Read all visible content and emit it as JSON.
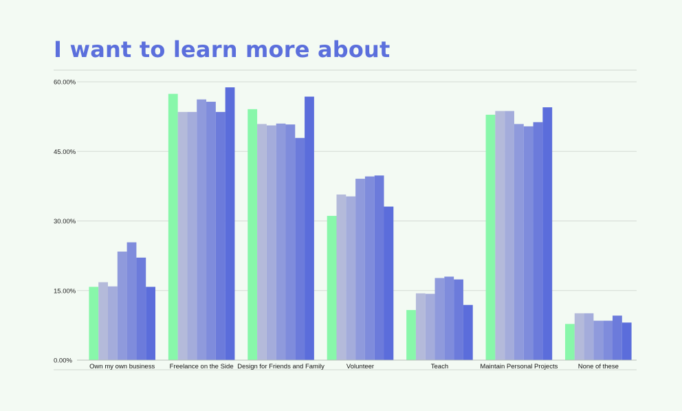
{
  "title": "I want to learn more about",
  "chart_data": {
    "type": "bar",
    "title": "I want to learn more about",
    "xlabel": "",
    "ylabel": "",
    "ylim": [
      0,
      60
    ],
    "yticks": [
      "0.00%",
      "15.00%",
      "30.00%",
      "45.00%",
      "60.00%"
    ],
    "grid": true,
    "legend": "none",
    "categories": [
      "Own my own business",
      "Freelance on the Side",
      "Design for Friends and Family",
      "Volunteer",
      "Teach",
      "Maintain Personal Projects",
      "None of these"
    ],
    "colors": [
      "#88f7aa",
      "#b4bada",
      "#a4acdb",
      "#8f9adc",
      "#7f8cdc",
      "#6c7bdb",
      "#5b6ddb"
    ],
    "series": [
      {
        "values": [
          15.8,
          57.4,
          54.1,
          31.1,
          10.8,
          52.9,
          7.8
        ]
      },
      {
        "values": [
          16.8,
          53.5,
          50.9,
          35.7,
          14.4,
          53.7,
          10.1
        ]
      },
      {
        "values": [
          15.9,
          53.5,
          50.6,
          35.3,
          14.3,
          53.7,
          10.1
        ]
      },
      {
        "values": [
          23.4,
          56.2,
          51.0,
          39.1,
          17.7,
          50.9,
          8.5
        ]
      },
      {
        "values": [
          25.4,
          55.7,
          50.8,
          39.6,
          18.0,
          50.4,
          8.5
        ]
      },
      {
        "values": [
          22.1,
          53.5,
          47.9,
          39.8,
          17.4,
          51.3,
          9.6
        ]
      },
      {
        "values": [
          15.8,
          58.8,
          56.8,
          33.1,
          11.9,
          54.5,
          8.1
        ]
      }
    ]
  }
}
